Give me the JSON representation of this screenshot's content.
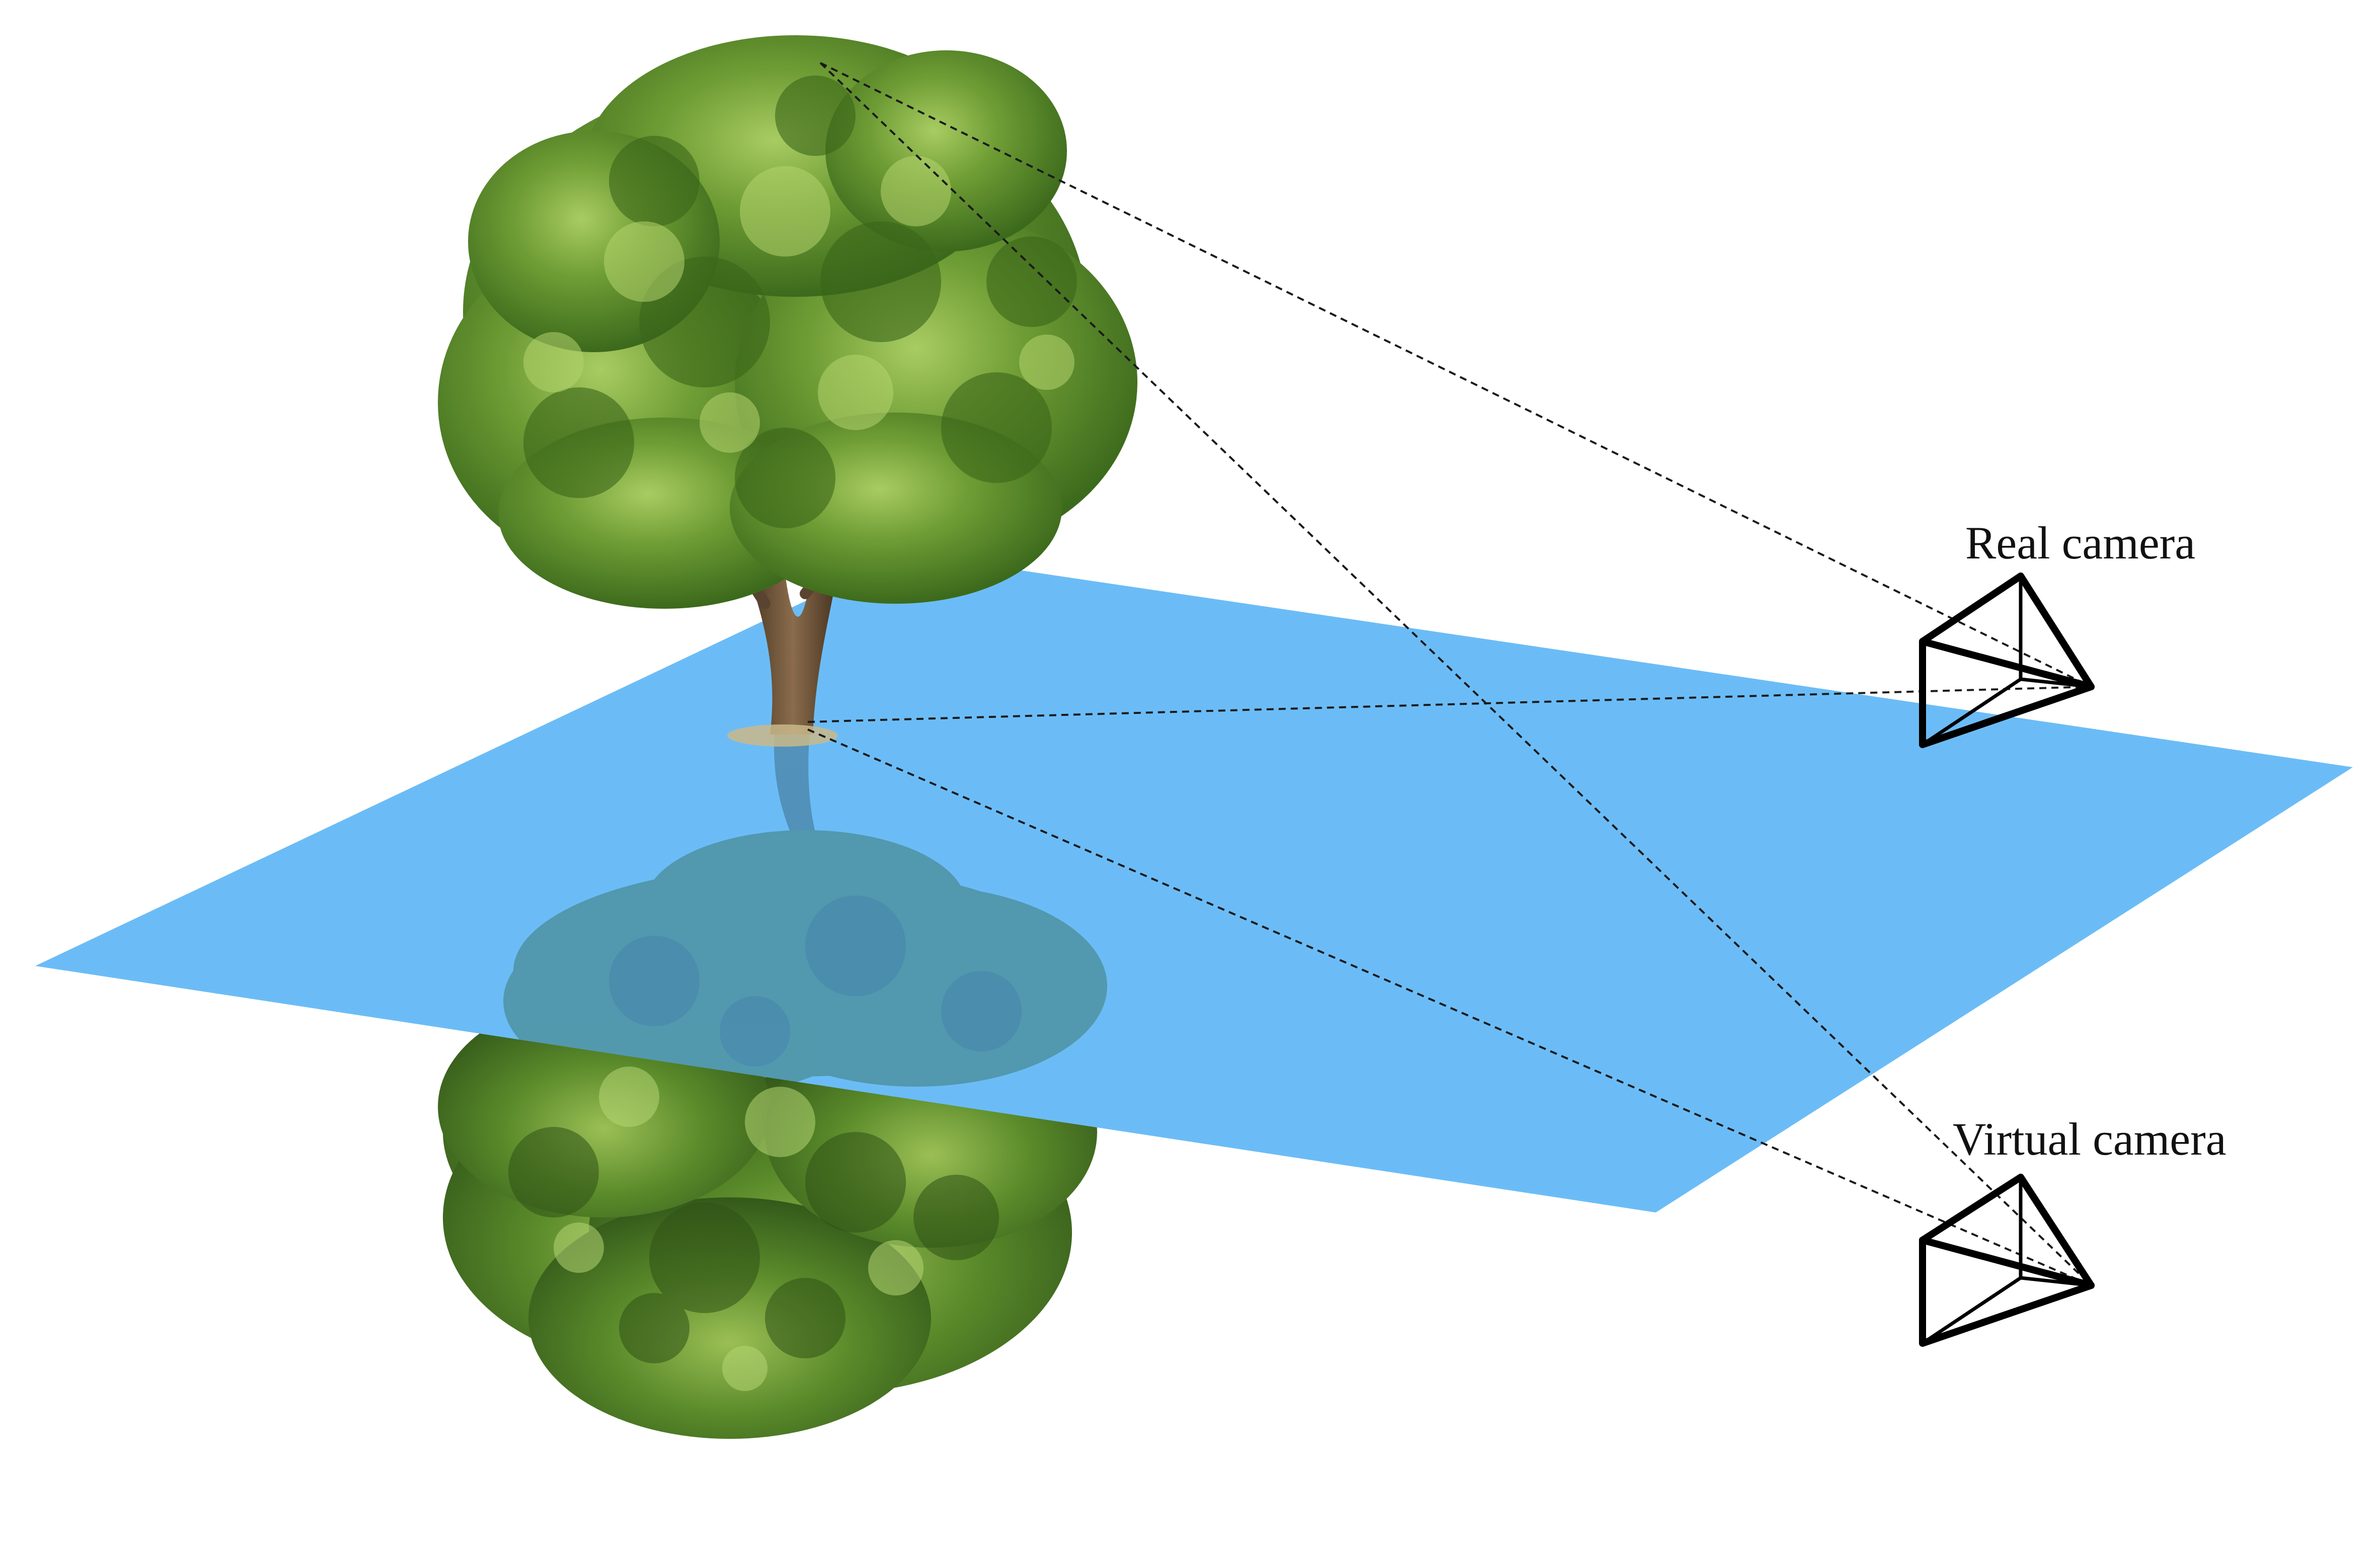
{
  "labels": {
    "real_camera": "Real camera",
    "virtual_camera": "Virtual camera"
  },
  "colors": {
    "water_plane": "#6bbcf6",
    "foliage_dark": "#3f6b1f",
    "foliage_mid": "#5f8f2c",
    "foliage_light": "#9cc25a",
    "trunk": "#6b5238",
    "camera_outline": "#000000"
  }
}
